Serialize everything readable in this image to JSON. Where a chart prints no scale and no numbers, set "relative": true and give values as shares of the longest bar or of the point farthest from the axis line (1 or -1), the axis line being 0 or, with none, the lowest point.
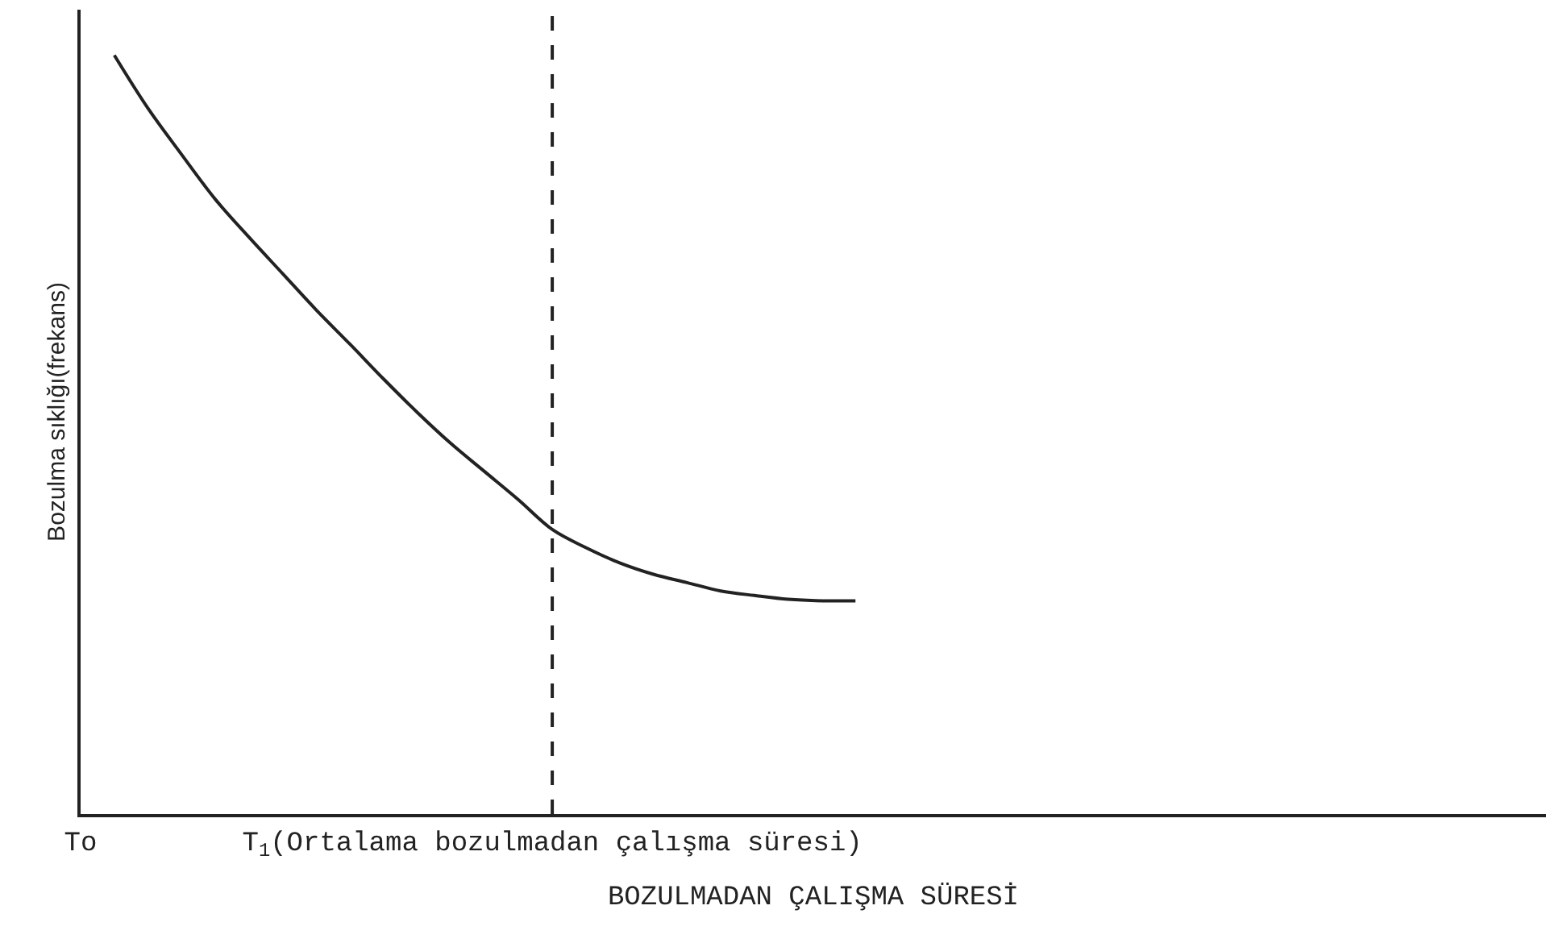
{
  "chart_data": {
    "type": "line",
    "relative": true,
    "xlabel": "BOZULMADAN ÇALIŞMA SÜRESİ",
    "ylabel": "Bozulma sıklığı(frekans)",
    "categories": [
      "To",
      null,
      null,
      null,
      null,
      null,
      null,
      null,
      null,
      null,
      null,
      null,
      null,
      null,
      "T$_{1}$(Ortalama bozulmadan çalışma süresi)",
      null,
      null,
      null,
      null,
      null,
      null,
      null,
      null,
      null,
      null,
      null,
      null,
      null,
      null,
      null,
      null,
      null,
      null,
      null,
      null,
      null,
      null,
      null,
      null,
      null,
      null,
      null,
      null,
      null
    ],
    "series": [
      {
        "color": "#222222",
        "values": [
          null,
          1.0,
          0.93,
          0.869,
          0.81,
          0.76,
          0.712,
          0.664,
          0.619,
          0.573,
          0.529,
          0.488,
          0.451,
          0.414,
          0.375,
          0.351,
          0.331,
          0.316,
          0.305,
          0.294,
          0.288,
          0.283,
          0.281,
          0.281,
          null,
          null,
          null,
          null,
          null,
          null,
          null,
          null,
          null,
          null,
          null,
          null,
          null,
          null,
          null,
          null,
          null,
          null,
          null,
          null
        ]
      }
    ],
    "ref_lines": [
      {
        "axis": "x",
        "value": "T$_{1}$(Ortalama bozulmadan çalışma süresi)",
        "color": "#222222",
        "line_style": "dashed"
      }
    ],
    "tick_labels": "x",
    "marker": "none",
    "line_style": "solid"
  }
}
